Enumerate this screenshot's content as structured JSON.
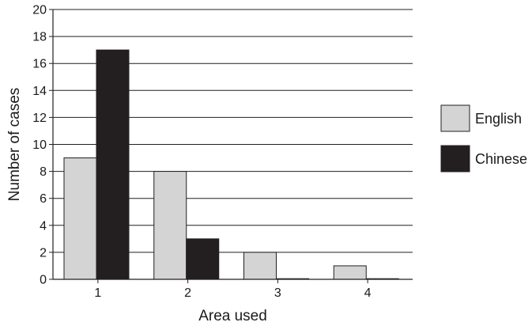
{
  "chart_data": {
    "type": "bar",
    "categories": [
      "1",
      "2",
      "3",
      "4"
    ],
    "series": [
      {
        "name": "English",
        "values": [
          9,
          8,
          2,
          1
        ],
        "color": "#d4d4d4"
      },
      {
        "name": "Chinese",
        "values": [
          17,
          3,
          0,
          0
        ],
        "color": "#231f20"
      }
    ],
    "xlabel": "Area used",
    "ylabel": "Number of cases",
    "ylim": [
      0,
      20
    ],
    "yticks": [
      "0",
      "2",
      "4",
      "6",
      "8",
      "10",
      "12",
      "14",
      "16",
      "18",
      "20"
    ],
    "grid": true,
    "legend_position": "right"
  }
}
